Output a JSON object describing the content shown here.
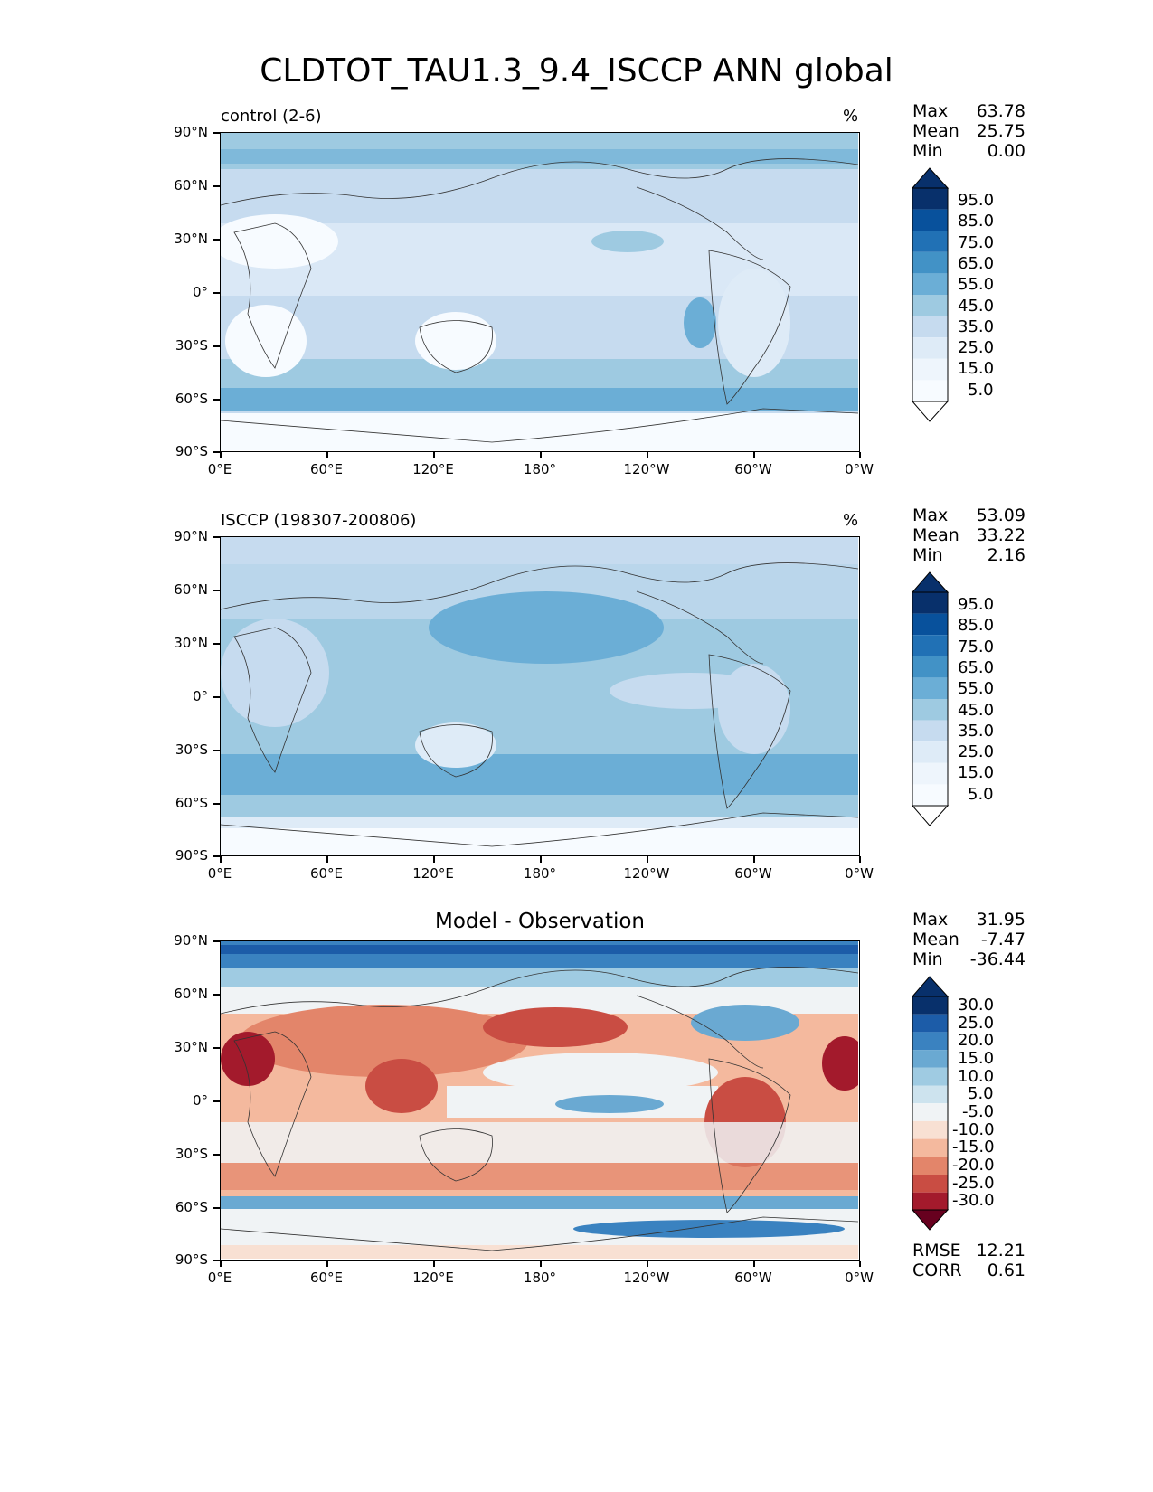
{
  "title": "CLDTOT_TAU1.3_9.4_ISCCP ANN global",
  "lat_ticks": [
    "90°N",
    "60°N",
    "30°N",
    "0°",
    "30°S",
    "60°S",
    "90°S"
  ],
  "lon_ticks": [
    "0°E",
    "60°E",
    "120°E",
    "180°",
    "120°W",
    "60°W",
    "0°W"
  ],
  "panels": [
    {
      "name": "control (2-6)",
      "unit": "%",
      "stats": {
        "max_label": "Max",
        "max": "63.78",
        "mean_label": "Mean",
        "mean": "25.75",
        "min_label": "Min",
        "min": "0.00"
      },
      "colorbar": {
        "labels": [
          "95.0",
          "85.0",
          "75.0",
          "65.0",
          "55.0",
          "45.0",
          "35.0",
          "25.0",
          "15.0",
          "5.0"
        ],
        "colors": [
          "#08306b",
          "#08519c",
          "#2171b5",
          "#4292c6",
          "#6baed6",
          "#9ecae1",
          "#c6dbef",
          "#deebf7",
          "#f7fbff"
        ],
        "extend_top": "#08306b",
        "extend_bottom": "#ffffff"
      }
    },
    {
      "name": "ISCCP (198307-200806)",
      "unit": "%",
      "stats": {
        "max_label": "Max",
        "max": "53.09",
        "mean_label": "Mean",
        "mean": "33.22",
        "min_label": "Min",
        "min": "2.16"
      },
      "colorbar": {
        "labels": [
          "95.0",
          "85.0",
          "75.0",
          "65.0",
          "55.0",
          "45.0",
          "35.0",
          "25.0",
          "15.0",
          "5.0"
        ],
        "colors": [
          "#08306b",
          "#08519c",
          "#2171b5",
          "#4292c6",
          "#6baed6",
          "#9ecae1",
          "#c6dbef",
          "#deebf7",
          "#f7fbff"
        ],
        "extend_top": "#08306b",
        "extend_bottom": "#ffffff"
      }
    },
    {
      "name": "Model - Observation",
      "unit": "",
      "stats": {
        "max_label": "Max",
        "max": "31.95",
        "mean_label": "Mean",
        "mean": "-7.47",
        "min_label": "Min",
        "min": "-36.44",
        "rmse_label": "RMSE",
        "rmse": "12.21",
        "corr_label": "CORR",
        "corr": "0.61"
      },
      "colorbar": {
        "labels": [
          "30.0",
          "25.0",
          "20.0",
          "15.0",
          "10.0",
          "5.0",
          "-5.0",
          "-10.0",
          "-15.0",
          "-20.0",
          "-25.0",
          "-30.0"
        ],
        "colors": [
          "#1c5ca8",
          "#3a82c0",
          "#6aa9d2",
          "#9fcbe2",
          "#cde3ee",
          "#f0f3f5",
          "#f8e0d3",
          "#f4b99e",
          "#e3856a",
          "#c94d43",
          "#a31a2c"
        ],
        "extend_top": "#08306b",
        "extend_bottom": "#67001f"
      }
    }
  ],
  "chart_data": [
    {
      "type": "heatmap",
      "title": "control (2-6)",
      "unit": "%",
      "x_range": [
        0,
        360
      ],
      "y_range": [
        -90,
        90
      ],
      "levels": [
        5,
        15,
        25,
        35,
        45,
        55,
        65,
        75,
        85,
        95
      ],
      "max": 63.78,
      "mean": 25.75,
      "min": 0.0
    },
    {
      "type": "heatmap",
      "title": "ISCCP (198307-200806)",
      "unit": "%",
      "x_range": [
        0,
        360
      ],
      "y_range": [
        -90,
        90
      ],
      "levels": [
        5,
        15,
        25,
        35,
        45,
        55,
        65,
        75,
        85,
        95
      ],
      "max": 53.09,
      "mean": 33.22,
      "min": 2.16
    },
    {
      "type": "heatmap",
      "title": "Model - Observation",
      "x_range": [
        0,
        360
      ],
      "y_range": [
        -90,
        90
      ],
      "levels": [
        -30,
        -25,
        -20,
        -15,
        -10,
        -5,
        5,
        10,
        15,
        20,
        25,
        30
      ],
      "max": 31.95,
      "mean": -7.47,
      "min": -36.44,
      "rmse": 12.21,
      "corr": 0.61
    }
  ]
}
